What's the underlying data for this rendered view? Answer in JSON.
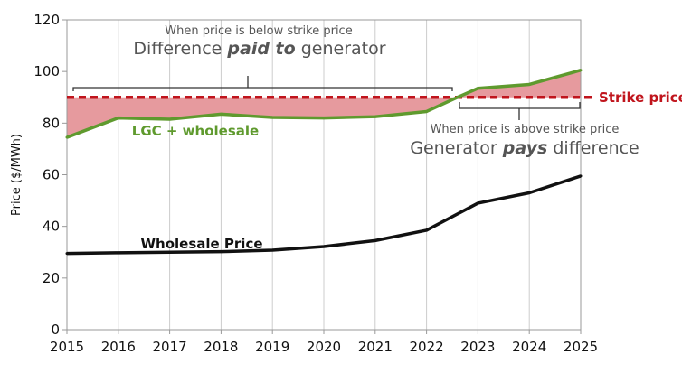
{
  "chart_data": {
    "type": "line",
    "ylabel": "Price ($/MWh)",
    "xlim": [
      2015,
      2025
    ],
    "ylim": [
      0,
      120
    ],
    "x_ticks": [
      "2015",
      "2016",
      "2017",
      "2018",
      "2019",
      "2020",
      "2021",
      "2022",
      "2023",
      "2024",
      "2025"
    ],
    "y_ticks": [
      "0",
      "20",
      "40",
      "60",
      "80",
      "100",
      "120"
    ],
    "grid": "vertical only",
    "strike_price": {
      "value": 90,
      "label": "Strike price",
      "color": "#c0141c"
    },
    "series": [
      {
        "name": "LGC + wholesale",
        "color": "#5f9a2e",
        "x": [
          2015,
          2016,
          2017,
          2018,
          2019,
          2020,
          2021,
          2022,
          2022.6,
          2023,
          2024,
          2025
        ],
        "y": [
          74.5,
          82,
          81.5,
          83.5,
          82.2,
          82,
          82.5,
          84.5,
          90,
          93.5,
          95,
          100.5
        ]
      },
      {
        "name": "Wholesale Price",
        "color": "#111111",
        "x": [
          2015,
          2016,
          2017,
          2018,
          2019,
          2020,
          2021,
          2022,
          2023,
          2024,
          2025
        ],
        "y": [
          29.5,
          29.8,
          30,
          30.2,
          30.8,
          32.2,
          34.5,
          38.5,
          49,
          53,
          59.5
        ]
      }
    ],
    "fill_color": "#e69a9e",
    "annotations": {
      "below_small": "When price is below strike price",
      "below_big_pre": "Difference ",
      "below_big_em": "paid to",
      "below_big_post": " generator",
      "above_small": "When price is above strike price",
      "above_big_pre": "Generator ",
      "above_big_em": "pays",
      "above_big_post": " difference"
    }
  }
}
